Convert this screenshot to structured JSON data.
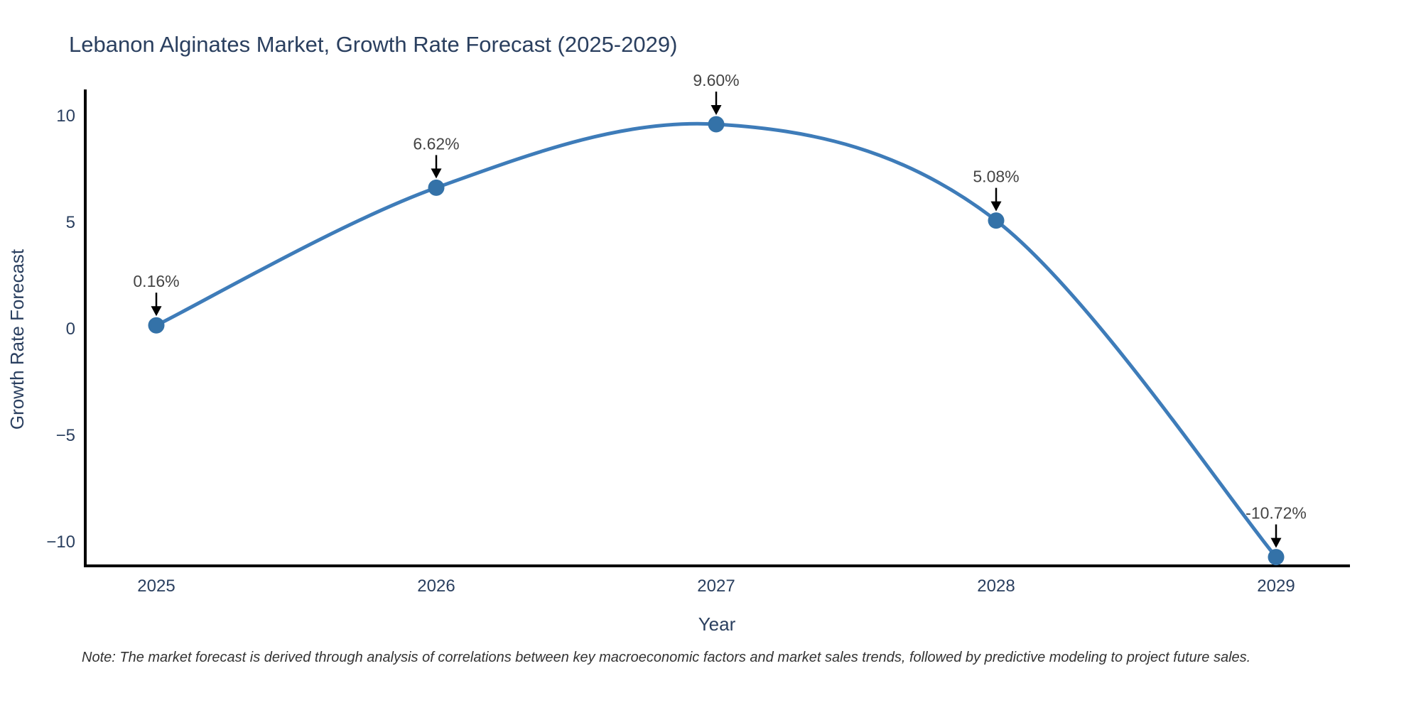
{
  "chart_data": {
    "type": "line",
    "line_shape": "spline",
    "title": "Lebanon Alginates Market, Growth Rate Forecast (2025-2029)",
    "xlabel": "Year",
    "ylabel": "Growth Rate Forecast",
    "categories": [
      "2025",
      "2026",
      "2027",
      "2028",
      "2029"
    ],
    "series": [
      {
        "name": "Growth Rate Forecast",
        "values": [
          0.16,
          6.62,
          9.6,
          5.08,
          -10.72
        ]
      }
    ],
    "point_labels": [
      "0.16%",
      "6.62%",
      "9.60%",
      "5.08%",
      "-10.72%"
    ],
    "ytick_values": [
      10,
      5,
      0,
      -5,
      -10
    ],
    "ytick_labels": [
      "10",
      "5",
      "0",
      "−5",
      "−10"
    ],
    "ylim": [
      -11.2,
      11.2
    ],
    "grid": false,
    "legend_position": "none",
    "note": "Note: The market forecast is derived through analysis of correlations between key macroeconomic factors and market sales trends, followed by predictive modeling to project future sales.",
    "colors": {
      "background": "#ffffff",
      "line": "#3e7cb9",
      "marker": "#3472a8",
      "axis_line": "#000000",
      "arrow": "#000000",
      "title_text": "#2a3f5f",
      "tick_text": "#2a3f5f",
      "annotation_text": "#444444",
      "note_text": "#333333"
    }
  }
}
